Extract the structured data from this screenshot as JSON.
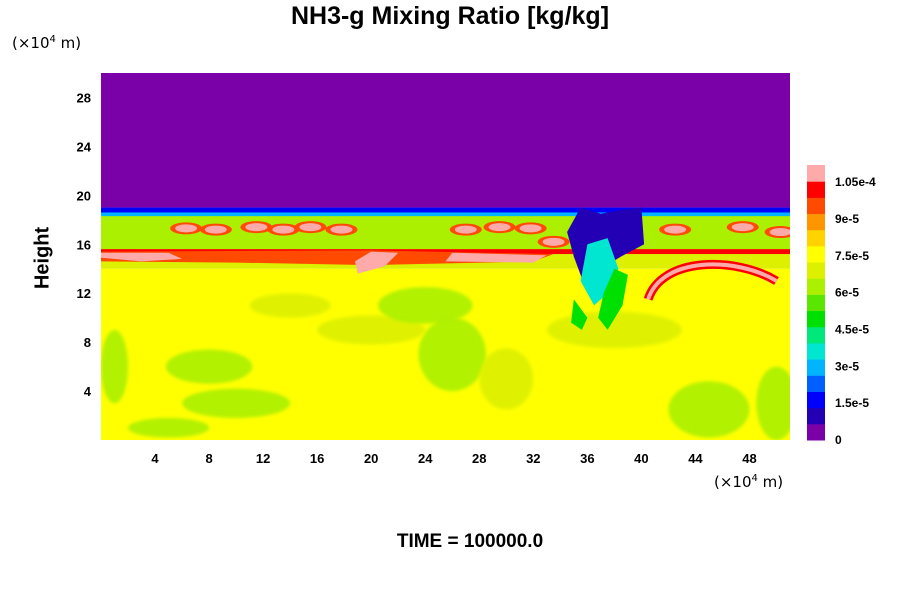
{
  "chart_data": {
    "type": "heatmap",
    "title": "NH3-g Mixing Ratio [kg/kg]",
    "ylabel": "Height",
    "xlabel": "",
    "x_unit": "(×10",
    "x_unit_exp": "4",
    "x_unit_end": " m)",
    "y_unit": "(×10",
    "y_unit_exp": "4",
    "y_unit_end": " m)",
    "xlim": [
      0,
      51
    ],
    "ylim": [
      0,
      30
    ],
    "x_ticks": [
      4,
      8,
      12,
      16,
      20,
      24,
      28,
      32,
      36,
      40,
      44,
      48
    ],
    "y_ticks": [
      4,
      8,
      12,
      16,
      20,
      24,
      28
    ],
    "colorbar": {
      "min": 0,
      "max": 0.000112,
      "tick_values": [
        0,
        1.5e-05,
        3e-05,
        4.5e-05,
        6e-05,
        7.5e-05,
        9e-05,
        0.000105
      ],
      "tick_labels": [
        "0",
        "1.5e-5",
        "3e-5",
        "4.5e-5",
        "6e-5",
        "7.5e-5",
        "9e-5",
        "1.05e-4"
      ],
      "colors": [
        "#7a00a8",
        "#2400b4",
        "#0000ff",
        "#0060ff",
        "#00b4ff",
        "#00e6d0",
        "#00e87a",
        "#00e000",
        "#5ae600",
        "#aaf000",
        "#ddf000",
        "#ffff00",
        "#ffd200",
        "#ff9600",
        "#ff4a00",
        "#ff0000",
        "#ffaaaa"
      ]
    },
    "field_regions": [
      {
        "region": "upper layer",
        "x_range": [
          0,
          51
        ],
        "y_range": [
          19,
          30
        ],
        "value": 0
      },
      {
        "region": "band",
        "x_range": [
          0,
          51
        ],
        "y_range": [
          15.5,
          18.5
        ],
        "value": 6e-05
      },
      {
        "region": "lower layer",
        "x_range": [
          0,
          51
        ],
        "y_range": [
          0,
          14
        ],
        "value": 7.5e-05
      }
    ],
    "caption": {
      "label": "TIME =",
      "value": "100000.0"
    }
  }
}
